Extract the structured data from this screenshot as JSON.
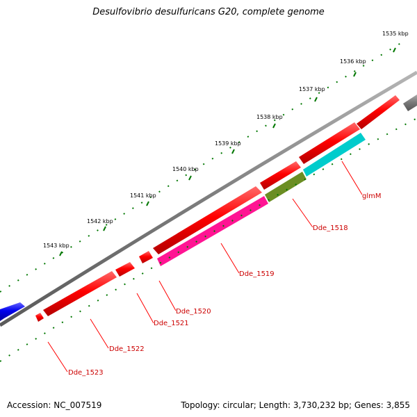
{
  "title": "Desulfovibrio desulfuricans G20, complete genome",
  "footer": {
    "accession": "Accession: NC_007519",
    "summary": "Topology: circular; Length: 3,730,232 bp; Genes: 3,855"
  },
  "scale": {
    "labels": [
      "1535 kbp",
      "1536 kbp",
      "1537 kbp",
      "1538 kbp",
      "1539 kbp",
      "1540 kbp",
      "1541 kbp",
      "1542 kbp",
      "1543 kbp"
    ]
  },
  "genes": [
    {
      "name": "unlabeled-gray-gene",
      "label": "",
      "strand": "+",
      "color": "#7a7a7a"
    },
    {
      "name": "unlabeled-blue-gene",
      "label": "",
      "strand": "+",
      "color": "#0000ee"
    },
    {
      "name": "gene-forward-1",
      "label": "",
      "strand": "+",
      "color": "#ff0000"
    },
    {
      "name": "gene-forward-2",
      "label": "",
      "strand": "+",
      "color": "#ff0000"
    },
    {
      "name": "gene-forward-3",
      "label": "",
      "strand": "+",
      "color": "#ff0000"
    },
    {
      "name": "gene-forward-4",
      "label": "",
      "strand": "+",
      "color": "#ff0000"
    },
    {
      "name": "gene-forward-5",
      "label": "",
      "strand": "+",
      "color": "#ff0000"
    },
    {
      "name": "gene-forward-6",
      "label": "",
      "strand": "+",
      "color": "#ff0000"
    },
    {
      "name": "glmM",
      "label": "glmM",
      "strand": "-",
      "color": "#00cccc"
    },
    {
      "name": "Dde_1518",
      "label": "Dde_1518",
      "strand": "-",
      "color": "#6b8e23"
    },
    {
      "name": "Dde_1519",
      "label": "Dde_1519",
      "strand": "-",
      "color": "#ff1493"
    },
    {
      "name": "Dde_1520",
      "label": "Dde_1520",
      "strand": "+",
      "color": "#ff0000"
    },
    {
      "name": "Dde_1521",
      "label": "Dde_1521",
      "strand": "+",
      "color": "#ff0000"
    },
    {
      "name": "Dde_1522",
      "label": "Dde_1522",
      "strand": "+",
      "color": "#ff0000"
    },
    {
      "name": "Dde_1523",
      "label": "Dde_1523",
      "strand": "+",
      "color": "#ff0000"
    }
  ],
  "colors": {
    "backbone": "#808080",
    "ticks": "#007700",
    "label_red": "#cc0000"
  }
}
